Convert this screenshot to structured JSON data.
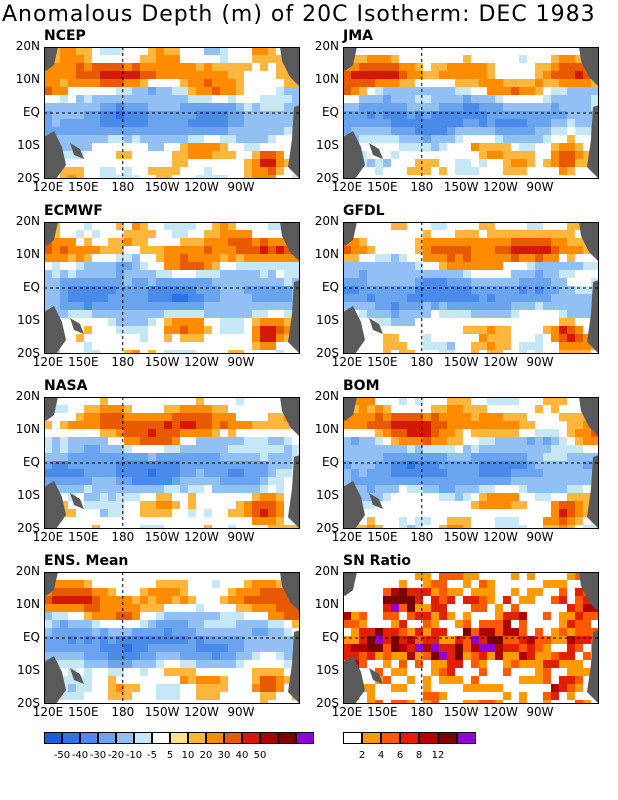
{
  "title": "Anomalous Depth (m) of 20C Isotherm: DEC 1983",
  "axes": {
    "lat_labels": [
      "20N",
      "10N",
      "EQ",
      "10S",
      "20S"
    ],
    "lon_labels": [
      "120E",
      "150E",
      "180",
      "150W",
      "120W",
      "90W"
    ]
  },
  "panels": [
    {
      "id": "ncep",
      "label": "NCEP"
    },
    {
      "id": "jma",
      "label": "JMA"
    },
    {
      "id": "ecmwf",
      "label": "ECMWF"
    },
    {
      "id": "gfdl",
      "label": "GFDL"
    },
    {
      "id": "nasa",
      "label": "NASA"
    },
    {
      "id": "bom",
      "label": "BOM"
    },
    {
      "id": "ens",
      "label": "ENS. Mean"
    },
    {
      "id": "sn",
      "label": "SN Ratio"
    }
  ],
  "colorbar_anomaly": {
    "labels": [
      "-50",
      "-40",
      "-30",
      "-20",
      "-10",
      "-5",
      "5",
      "10",
      "20",
      "30",
      "40",
      "50"
    ],
    "colors": [
      "#1f5fd4",
      "#2f73e0",
      "#4a8ae8",
      "#6aa3ee",
      "#93c0f4",
      "#c6e8f6",
      "#ffffff",
      "#ffe08c",
      "#ffb63c",
      "#ff8c00",
      "#e85a00",
      "#d21a00",
      "#a80000",
      "#7a0000",
      "#9400d3"
    ]
  },
  "colorbar_sn": {
    "labels": [
      "2",
      "4",
      "6",
      "8",
      "12"
    ],
    "colors": [
      "#ffffff",
      "#ff9a00",
      "#ff5a00",
      "#e02000",
      "#b00000",
      "#7a0000",
      "#9400d3"
    ]
  }
}
